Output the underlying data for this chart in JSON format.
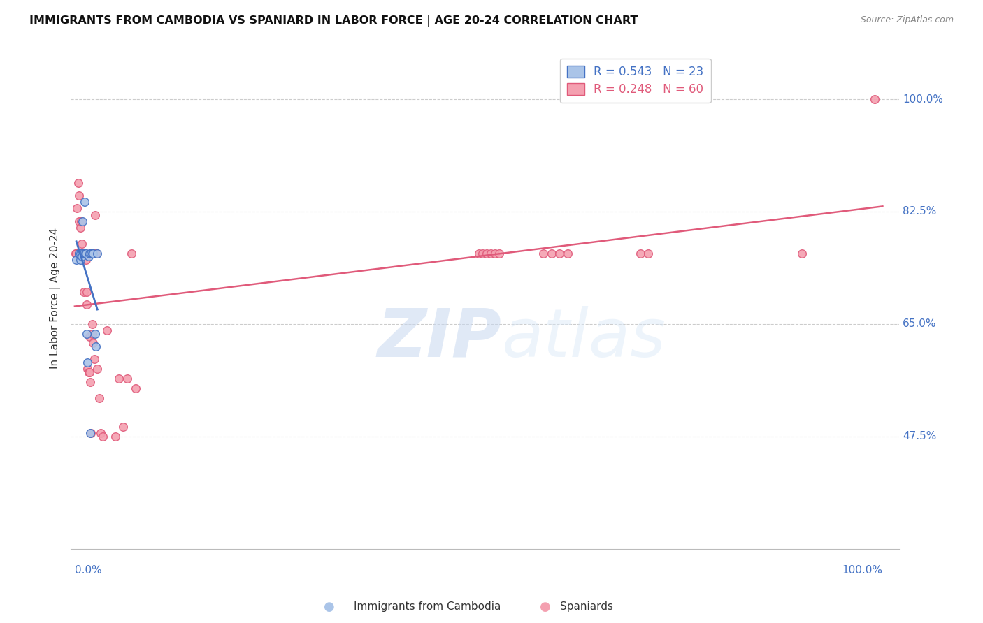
{
  "title": "IMMIGRANTS FROM CAMBODIA VS SPANIARD IN LABOR FORCE | AGE 20-24 CORRELATION CHART",
  "source": "Source: ZipAtlas.com",
  "ylabel": "In Labor Force | Age 20-24",
  "x_tick_labels": [
    "0.0%",
    "100.0%"
  ],
  "y_tick_labels": [
    "47.5%",
    "65.0%",
    "82.5%",
    "100.0%"
  ],
  "y_tick_positions": [
    0.475,
    0.65,
    0.825,
    1.0
  ],
  "grid_color": "#cccccc",
  "background_color": "#ffffff",
  "cambodia_face_color": "#aac4e8",
  "cambodia_edge_color": "#4472c4",
  "spaniard_face_color": "#f4a0b0",
  "spaniard_edge_color": "#e05a7a",
  "legend_cambodia_R": "0.543",
  "legend_cambodia_N": "23",
  "legend_spaniard_R": "0.248",
  "legend_spaniard_N": "60",
  "cambodia_x": [
    0.002,
    0.005,
    0.005,
    0.007,
    0.007,
    0.009,
    0.009,
    0.01,
    0.011,
    0.012,
    0.013,
    0.014,
    0.015,
    0.016,
    0.017,
    0.018,
    0.019,
    0.02,
    0.022,
    0.023,
    0.025,
    0.026,
    0.028
  ],
  "cambodia_y": [
    0.75,
    0.76,
    0.76,
    0.76,
    0.75,
    0.76,
    0.755,
    0.81,
    0.76,
    0.84,
    0.76,
    0.76,
    0.635,
    0.59,
    0.755,
    0.76,
    0.48,
    0.76,
    0.76,
    0.76,
    0.635,
    0.615,
    0.76
  ],
  "spaniard_x": [
    0.001,
    0.002,
    0.003,
    0.004,
    0.005,
    0.005,
    0.006,
    0.007,
    0.007,
    0.008,
    0.008,
    0.009,
    0.009,
    0.01,
    0.01,
    0.011,
    0.012,
    0.013,
    0.014,
    0.015,
    0.015,
    0.016,
    0.017,
    0.018,
    0.018,
    0.019,
    0.02,
    0.021,
    0.022,
    0.022,
    0.023,
    0.024,
    0.025,
    0.025,
    0.027,
    0.028,
    0.03,
    0.032,
    0.035,
    0.04,
    0.05,
    0.055,
    0.06,
    0.065,
    0.07,
    0.075,
    0.5,
    0.505,
    0.51,
    0.515,
    0.52,
    0.525,
    0.58,
    0.59,
    0.6,
    0.61,
    0.7,
    0.71,
    0.9,
    0.99
  ],
  "spaniard_y": [
    0.76,
    0.76,
    0.83,
    0.87,
    0.81,
    0.85,
    0.76,
    0.8,
    0.76,
    0.76,
    0.81,
    0.76,
    0.775,
    0.76,
    0.76,
    0.7,
    0.76,
    0.76,
    0.75,
    0.7,
    0.68,
    0.58,
    0.575,
    0.63,
    0.575,
    0.56,
    0.48,
    0.76,
    0.65,
    0.635,
    0.62,
    0.595,
    0.76,
    0.82,
    0.76,
    0.58,
    0.535,
    0.48,
    0.475,
    0.64,
    0.475,
    0.565,
    0.49,
    0.565,
    0.76,
    0.55,
    0.76,
    0.76,
    0.76,
    0.76,
    0.76,
    0.76,
    0.76,
    0.76,
    0.76,
    0.76,
    0.76,
    0.76,
    0.76,
    1.0
  ],
  "watermark_zip": "ZIP",
  "watermark_atlas": "atlas",
  "marker_size": 70
}
